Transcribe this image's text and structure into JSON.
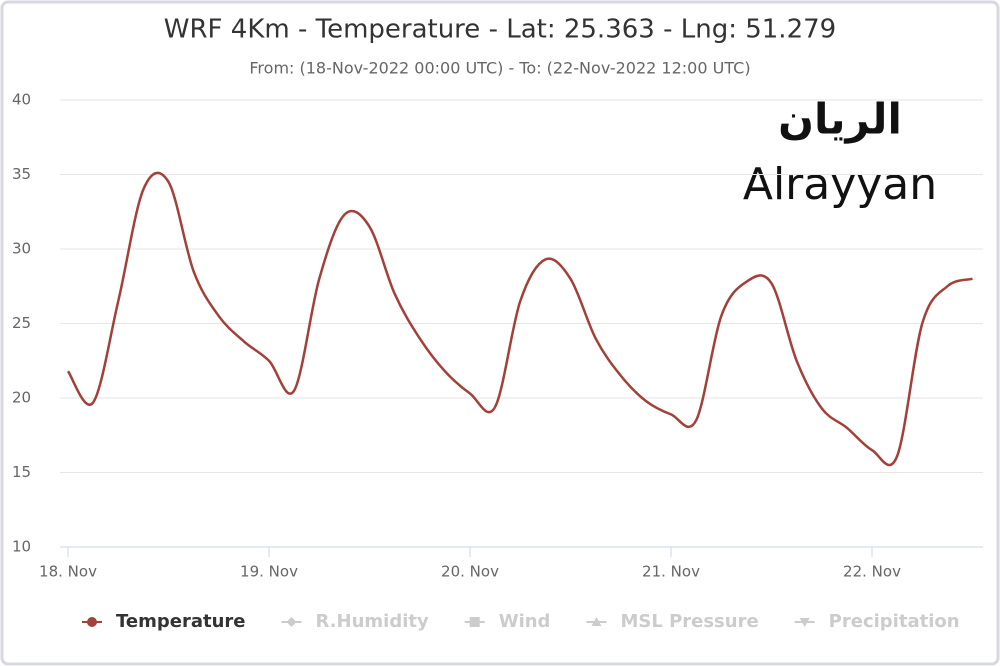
{
  "chart_data": {
    "type": "line",
    "title": "WRF 4Km - Temperature - Lat: 25.363 - Lng: 51.279",
    "subtitle": "From: (18-Nov-2022 00:00 UTC) - To: (22-Nov-2022 12:00 UTC)",
    "annotations": [
      "الريان",
      "Alrayyan"
    ],
    "x": [
      0,
      3,
      6,
      9,
      12,
      15,
      18,
      21,
      24,
      27,
      30,
      33,
      36,
      39,
      42,
      45,
      48,
      51,
      54,
      57,
      60,
      63,
      66,
      69,
      72,
      75,
      78,
      81,
      84,
      87,
      90,
      93,
      96,
      99,
      102,
      105,
      108
    ],
    "series": [
      {
        "name": "Temperature",
        "color": "#a2403a",
        "values": [
          21.8,
          19.7,
          26.5,
          34.0,
          34.5,
          28.5,
          25.5,
          23.8,
          22.5,
          20.5,
          28.0,
          32.3,
          31.5,
          27.0,
          24.0,
          21.8,
          20.3,
          19.4,
          26.5,
          29.3,
          28.0,
          24.0,
          21.5,
          19.8,
          18.9,
          18.5,
          25.5,
          27.8,
          27.7,
          22.5,
          19.3,
          18.0,
          16.5,
          16.1,
          25.0,
          27.5,
          28.0
        ]
      }
    ],
    "hidden_series": [
      "R.Humidity",
      "Wind",
      "MSL Pressure",
      "Precipitation"
    ],
    "xlim": [
      0,
      108
    ],
    "xticks": [
      {
        "value": 0,
        "label": "18. Nov"
      },
      {
        "value": 24,
        "label": "19. Nov"
      },
      {
        "value": 48,
        "label": "20. Nov"
      },
      {
        "value": 72,
        "label": "21. Nov"
      },
      {
        "value": 96,
        "label": "22. Nov"
      }
    ],
    "ylim": [
      10,
      40
    ],
    "yticks": [
      10,
      15,
      20,
      25,
      30,
      35,
      40
    ],
    "grid": true
  }
}
